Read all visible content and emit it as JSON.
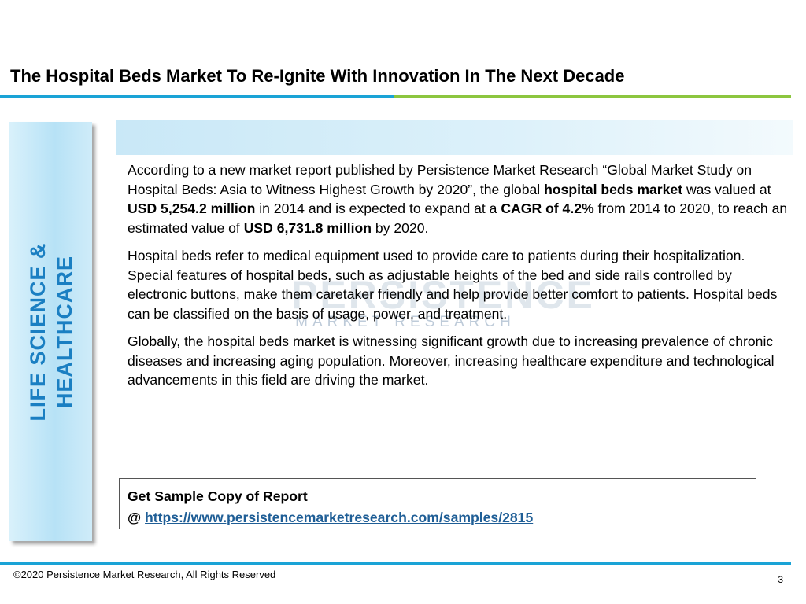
{
  "slide": {
    "title": "The Hospital Beds Market To Re-Ignite With Innovation In The Next Decade",
    "side_label_line1": "LIFE SCIENCE &",
    "side_label_line2": "HEALTHCARE",
    "watermark": {
      "brand": "PERSISTENCE",
      "sub": "MARKET RESEARCH"
    },
    "paragraph1": {
      "t1": "According to a new market report published by Persistence Market Research “Global Market Study on Hospital Beds: Asia to Witness Highest Growth by 2020”, the global ",
      "b1": "hospital beds market",
      "t2": " was valued at ",
      "b2": "USD 5,254.2 million",
      "t3": " in 2014 and is expected to expand at a ",
      "b3": "CAGR of 4.2%",
      "t4": " from 2014 to 2020, to reach an estimated value of ",
      "b4": "USD 6,731.8 million",
      "t5": " by 2020."
    },
    "paragraph2": "Hospital beds refer to medical equipment used to provide care to patients during their hospitalization. Special features of hospital beds, such as adjustable heights of the bed and side rails controlled by electronic buttons, make them caretaker friendly and help provide better comfort to patients. Hospital beds can be classified on the basis of usage, power, and treatment.",
    "paragraph3": "Globally, the hospital beds market is witnessing significant growth due to increasing prevalence of chronic diseases and increasing aging population. Moreover, increasing healthcare expenditure and technological advancements in this field are driving the market.",
    "sample": {
      "heading": "Get Sample Copy of Report",
      "prefix": "@ ",
      "link_text": "https://www.persistencemarketresearch.com/samples/2815"
    },
    "footer": {
      "copyright": "©2020 Persistence Market Research, All Rights Reserved",
      "page_number": "3"
    },
    "colors": {
      "accent_blue": "#1aa3d6",
      "accent_green": "#8cc63f",
      "side_label": "#1a7fc2",
      "link": "#1f5e96"
    }
  }
}
